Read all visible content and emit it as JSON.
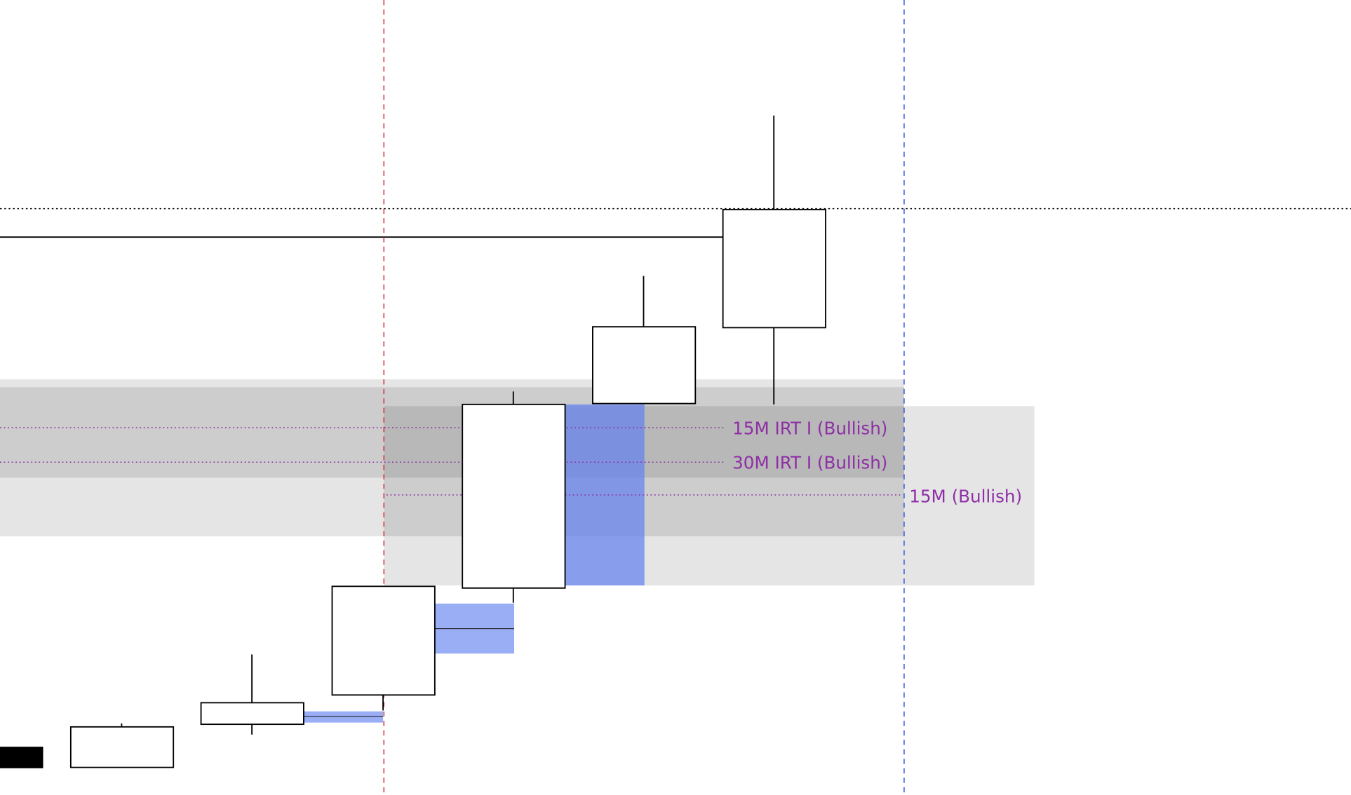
{
  "labels": [
    "15M IRT I (Bullish)",
    "30M IRT I (Bullish)",
    "15M (Bullish)"
  ]
}
